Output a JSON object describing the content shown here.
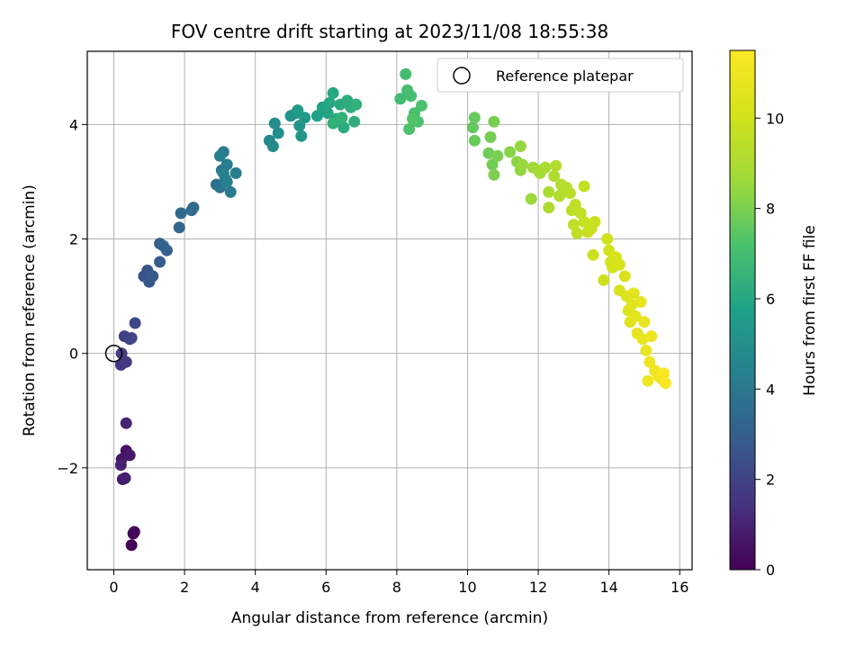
{
  "chart_data": {
    "type": "scatter",
    "title": "FOV centre drift starting at 2023/11/08 18:55:38",
    "xlabel": "Angular distance from reference (arcmin)",
    "ylabel": "Rotation from reference (arcmin)",
    "xlim": [
      -0.75,
      16.35
    ],
    "ylim": [
      -3.78,
      5.28
    ],
    "xticks": [
      0,
      2,
      4,
      6,
      8,
      10,
      12,
      14,
      16
    ],
    "yticks": [
      -2,
      0,
      2,
      4
    ],
    "grid": true,
    "legend": {
      "position": "top-right",
      "entries": [
        "Reference platepar"
      ]
    },
    "reference_point": {
      "x": 0,
      "y": 0
    },
    "colorbar": {
      "label": "Hours from first FF file",
      "range": [
        0,
        11.5
      ],
      "ticks": [
        0,
        2,
        4,
        6,
        8,
        10
      ],
      "colormap": "viridis"
    },
    "points": [
      [
        0.55,
        -3.15,
        0.1
      ],
      [
        0.5,
        -3.35,
        0.15
      ],
      [
        0.58,
        -3.12,
        0.2
      ],
      [
        0.35,
        -1.7,
        0.5
      ],
      [
        0.22,
        -1.85,
        0.6
      ],
      [
        0.45,
        -1.78,
        0.7
      ],
      [
        0.25,
        -2.2,
        0.8
      ],
      [
        0.32,
        -2.18,
        0.9
      ],
      [
        0.2,
        -1.95,
        1.0
      ],
      [
        0.35,
        -1.22,
        1.1
      ],
      [
        0.2,
        -0.2,
        1.6
      ],
      [
        0.35,
        -0.15,
        1.7
      ],
      [
        0.22,
        0.0,
        1.8
      ],
      [
        0.3,
        0.3,
        1.9
      ],
      [
        0.45,
        0.25,
        2.0
      ],
      [
        0.5,
        0.27,
        2.1
      ],
      [
        0.6,
        0.53,
        2.2
      ],
      [
        0.85,
        1.35,
        2.5
      ],
      [
        0.95,
        1.45,
        2.6
      ],
      [
        1.0,
        1.25,
        2.7
      ],
      [
        1.1,
        1.35,
        2.8
      ],
      [
        1.3,
        1.6,
        2.9
      ],
      [
        1.5,
        1.8,
        3.0
      ],
      [
        1.3,
        1.92,
        3.1
      ],
      [
        1.4,
        1.88,
        3.2
      ],
      [
        1.85,
        2.2,
        3.3
      ],
      [
        1.9,
        2.45,
        3.4
      ],
      [
        2.25,
        2.55,
        3.5
      ],
      [
        2.2,
        2.5,
        3.55
      ],
      [
        2.9,
        2.95,
        3.7
      ],
      [
        3.0,
        2.9,
        3.8
      ],
      [
        3.05,
        3.2,
        3.9
      ],
      [
        3.15,
        3.05,
        4.0
      ],
      [
        3.1,
        3.52,
        4.1
      ],
      [
        3.2,
        3.3,
        4.15
      ],
      [
        3.3,
        2.82,
        4.2
      ],
      [
        3.45,
        3.15,
        4.25
      ],
      [
        3.0,
        3.45,
        4.3
      ],
      [
        3.2,
        3.0,
        4.35
      ],
      [
        3.1,
        3.15,
        4.4
      ],
      [
        4.4,
        3.72,
        4.7
      ],
      [
        4.5,
        3.62,
        4.8
      ],
      [
        4.55,
        4.02,
        4.9
      ],
      [
        4.65,
        3.85,
        5.0
      ],
      [
        5.0,
        4.15,
        5.1
      ],
      [
        5.15,
        4.2,
        5.2
      ],
      [
        5.25,
        3.98,
        5.25
      ],
      [
        5.3,
        3.8,
        5.3
      ],
      [
        5.4,
        4.12,
        5.4
      ],
      [
        5.2,
        4.25,
        5.5
      ],
      [
        5.75,
        4.15,
        5.7
      ],
      [
        5.9,
        4.3,
        5.8
      ],
      [
        6.05,
        4.2,
        5.9
      ],
      [
        6.1,
        4.38,
        6.0
      ],
      [
        6.2,
        4.55,
        6.05
      ],
      [
        6.3,
        4.1,
        6.1
      ],
      [
        6.4,
        4.35,
        6.15
      ],
      [
        6.5,
        3.95,
        6.2
      ],
      [
        6.6,
        4.42,
        6.25
      ],
      [
        6.7,
        4.3,
        6.3
      ],
      [
        6.8,
        4.05,
        6.35
      ],
      [
        6.85,
        4.35,
        6.4
      ],
      [
        6.2,
        4.02,
        6.45
      ],
      [
        6.45,
        4.12,
        6.5
      ],
      [
        8.1,
        4.45,
        6.9
      ],
      [
        8.25,
        4.88,
        6.95
      ],
      [
        8.3,
        4.6,
        7.0
      ],
      [
        8.4,
        4.5,
        7.05
      ],
      [
        8.5,
        4.2,
        7.1
      ],
      [
        8.6,
        4.05,
        7.15
      ],
      [
        8.7,
        4.33,
        7.2
      ],
      [
        8.35,
        3.92,
        7.25
      ],
      [
        8.45,
        4.1,
        7.3
      ],
      [
        10.15,
        3.95,
        7.6
      ],
      [
        10.2,
        4.12,
        7.65
      ],
      [
        10.2,
        3.72,
        7.7
      ],
      [
        10.6,
        3.5,
        7.8
      ],
      [
        10.7,
        3.3,
        7.85
      ],
      [
        10.65,
        3.78,
        7.9
      ],
      [
        10.75,
        4.05,
        7.95
      ],
      [
        10.85,
        3.45,
        8.0
      ],
      [
        10.75,
        3.12,
        8.05
      ],
      [
        11.2,
        3.52,
        8.2
      ],
      [
        11.4,
        3.35,
        8.3
      ],
      [
        11.5,
        3.2,
        8.4
      ],
      [
        11.5,
        3.62,
        8.45
      ],
      [
        11.55,
        3.3,
        8.5
      ],
      [
        11.8,
        2.7,
        8.55
      ],
      [
        11.85,
        3.25,
        8.6
      ],
      [
        12.0,
        3.2,
        8.7
      ],
      [
        12.05,
        3.15,
        8.8
      ],
      [
        12.2,
        3.25,
        8.9
      ],
      [
        12.3,
        2.82,
        8.95
      ],
      [
        12.3,
        2.55,
        9.0
      ],
      [
        12.45,
        3.1,
        9.05
      ],
      [
        12.5,
        3.28,
        9.1
      ],
      [
        12.6,
        2.75,
        9.15
      ],
      [
        12.65,
        2.95,
        9.2
      ],
      [
        12.7,
        2.82,
        9.25
      ],
      [
        12.8,
        2.9,
        9.3
      ],
      [
        12.9,
        2.8,
        9.35
      ],
      [
        12.95,
        2.5,
        9.4
      ],
      [
        13.0,
        2.25,
        9.45
      ],
      [
        13.05,
        2.6,
        9.5
      ],
      [
        13.1,
        2.1,
        9.55
      ],
      [
        13.2,
        2.45,
        9.6
      ],
      [
        13.3,
        2.92,
        9.65
      ],
      [
        13.3,
        2.3,
        9.7
      ],
      [
        13.4,
        2.12,
        9.75
      ],
      [
        13.5,
        2.18,
        9.8
      ],
      [
        13.6,
        2.3,
        9.85
      ],
      [
        13.55,
        1.72,
        9.9
      ],
      [
        13.85,
        1.28,
        9.95
      ],
      [
        13.95,
        2.0,
        10.0
      ],
      [
        14.0,
        1.8,
        10.05
      ],
      [
        14.05,
        1.6,
        10.1
      ],
      [
        14.1,
        1.5,
        10.15
      ],
      [
        14.2,
        1.68,
        10.2
      ],
      [
        14.3,
        1.55,
        10.25
      ],
      [
        14.3,
        1.1,
        10.3
      ],
      [
        14.45,
        1.35,
        10.35
      ],
      [
        14.5,
        1.0,
        10.4
      ],
      [
        14.55,
        0.75,
        10.45
      ],
      [
        14.6,
        0.55,
        10.5
      ],
      [
        14.65,
        0.85,
        10.55
      ],
      [
        14.7,
        1.05,
        10.6
      ],
      [
        14.75,
        0.65,
        10.65
      ],
      [
        14.8,
        0.35,
        10.7
      ],
      [
        14.9,
        0.9,
        10.75
      ],
      [
        14.95,
        0.25,
        10.8
      ],
      [
        15.0,
        0.55,
        10.85
      ],
      [
        15.05,
        0.05,
        10.9
      ],
      [
        15.15,
        -0.15,
        10.95
      ],
      [
        15.2,
        0.3,
        11.0
      ],
      [
        15.3,
        -0.3,
        11.05
      ],
      [
        15.1,
        -0.48,
        11.1
      ],
      [
        15.4,
        -0.4,
        11.15
      ],
      [
        15.5,
        -0.45,
        11.2
      ],
      [
        15.55,
        -0.35,
        11.3
      ],
      [
        15.6,
        -0.52,
        11.4
      ]
    ]
  }
}
